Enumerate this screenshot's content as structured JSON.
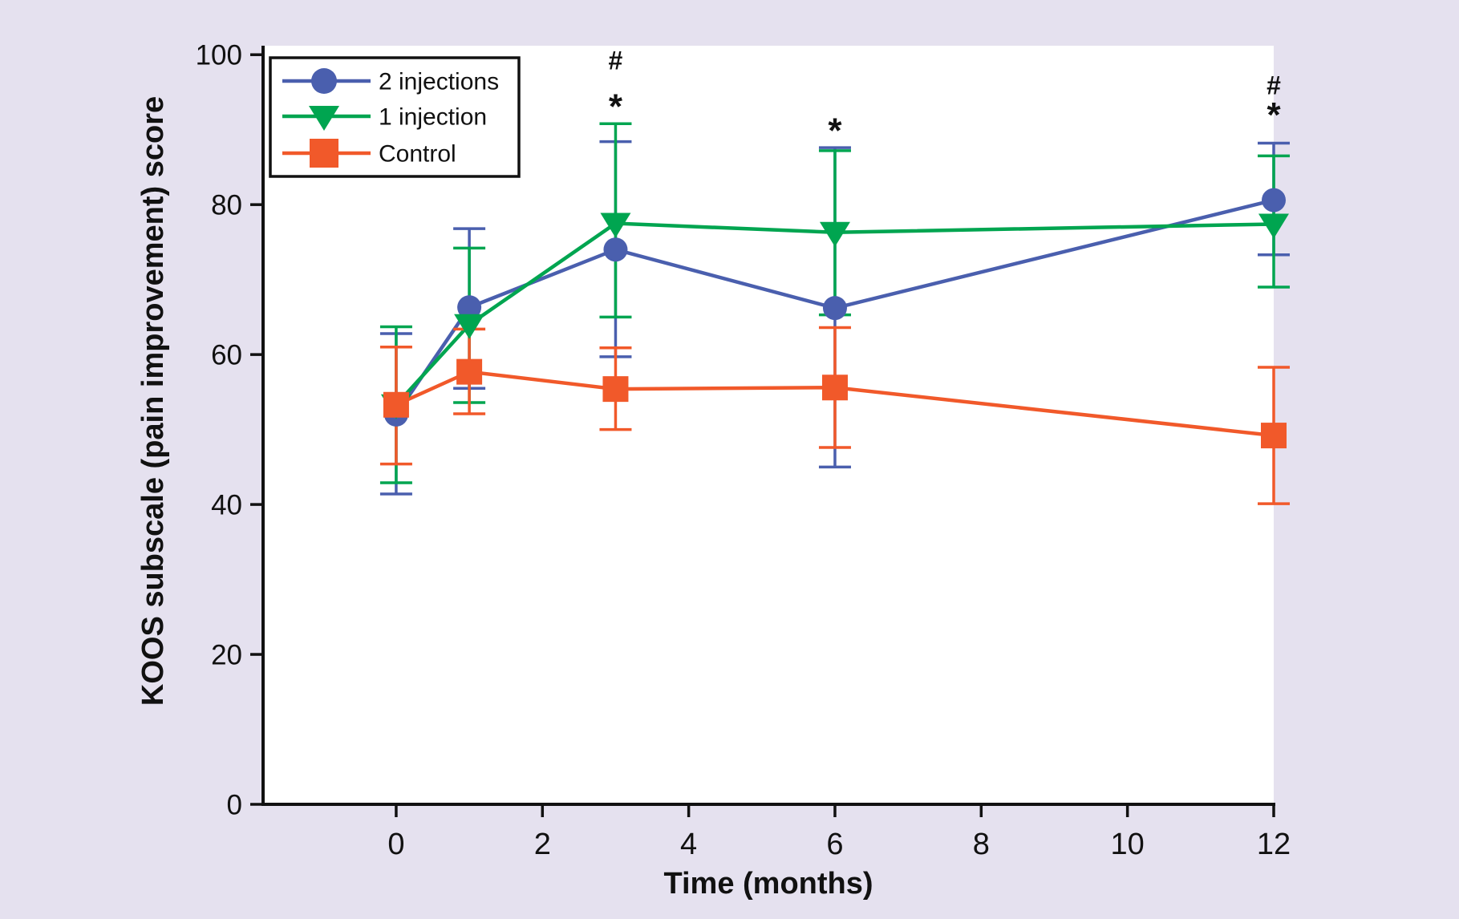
{
  "figure": {
    "background_color": "#e5e1ef",
    "plot_background_color": "#ffffff",
    "axis_color": "#111111"
  },
  "chart_data": {
    "type": "line",
    "title": "",
    "xlabel": "Time (months)",
    "ylabel": "KOOS subscale (pain improvement) score",
    "x_ticks": [
      0,
      2,
      4,
      6,
      8,
      10,
      12
    ],
    "y_ticks": [
      0,
      20,
      40,
      60,
      80,
      100
    ],
    "xlim": [
      -1.82,
      12
    ],
    "ylim": [
      0,
      101.2
    ],
    "grid": false,
    "legend_position": "top-left",
    "x": [
      0,
      1,
      3,
      6,
      12
    ],
    "series": [
      {
        "name": "2 injections",
        "color": "#4a5fae",
        "marker": "circle",
        "values": [
          52.0,
          66.3,
          74.0,
          66.2,
          80.6
        ],
        "err_lo": [
          41.4,
          55.5,
          59.7,
          45.0,
          73.3
        ],
        "err_hi": [
          62.8,
          76.8,
          88.4,
          87.6,
          88.2
        ]
      },
      {
        "name": "1 injection",
        "color": "#00a550",
        "marker": "triangle-down",
        "values": [
          53.3,
          64.0,
          77.5,
          76.3,
          77.4
        ],
        "err_lo": [
          42.9,
          53.6,
          65.0,
          65.3,
          69.0
        ],
        "err_hi": [
          63.7,
          74.2,
          90.8,
          87.2,
          86.5
        ]
      },
      {
        "name": "Control",
        "color": "#f1592a",
        "marker": "square",
        "values": [
          53.3,
          57.7,
          55.4,
          55.6,
          49.2
        ],
        "err_lo": [
          45.4,
          52.1,
          50.0,
          47.6,
          40.1
        ],
        "err_hi": [
          61.0,
          63.4,
          60.9,
          63.6,
          58.3
        ]
      }
    ],
    "annotations": [
      {
        "symbol": "#",
        "month": 3,
        "value": 99.2
      },
      {
        "symbol": "*",
        "month": 3,
        "value": 93.0
      },
      {
        "symbol": "*",
        "month": 6,
        "value": 89.8
      },
      {
        "symbol": "#",
        "month": 12,
        "value": 95.9
      },
      {
        "symbol": "*",
        "month": 12,
        "value": 91.9
      }
    ]
  }
}
